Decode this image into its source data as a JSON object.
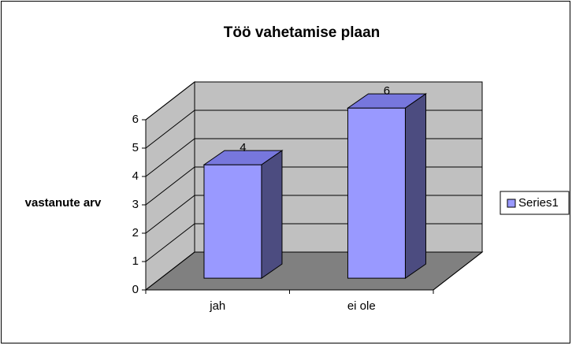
{
  "chart_data": {
    "type": "bar",
    "title": "Töö vahetamise plaan",
    "y_label": "vastanute arv",
    "categories": [
      "jah",
      "ei ole"
    ],
    "series": [
      {
        "name": "Series1",
        "color": "#9999ff",
        "values": [
          4,
          6
        ]
      }
    ],
    "ylim": [
      0,
      6
    ],
    "yticks": [
      0,
      1,
      2,
      3,
      4,
      5,
      6
    ],
    "grid": true,
    "legend": "right",
    "show_value_labels": true
  }
}
